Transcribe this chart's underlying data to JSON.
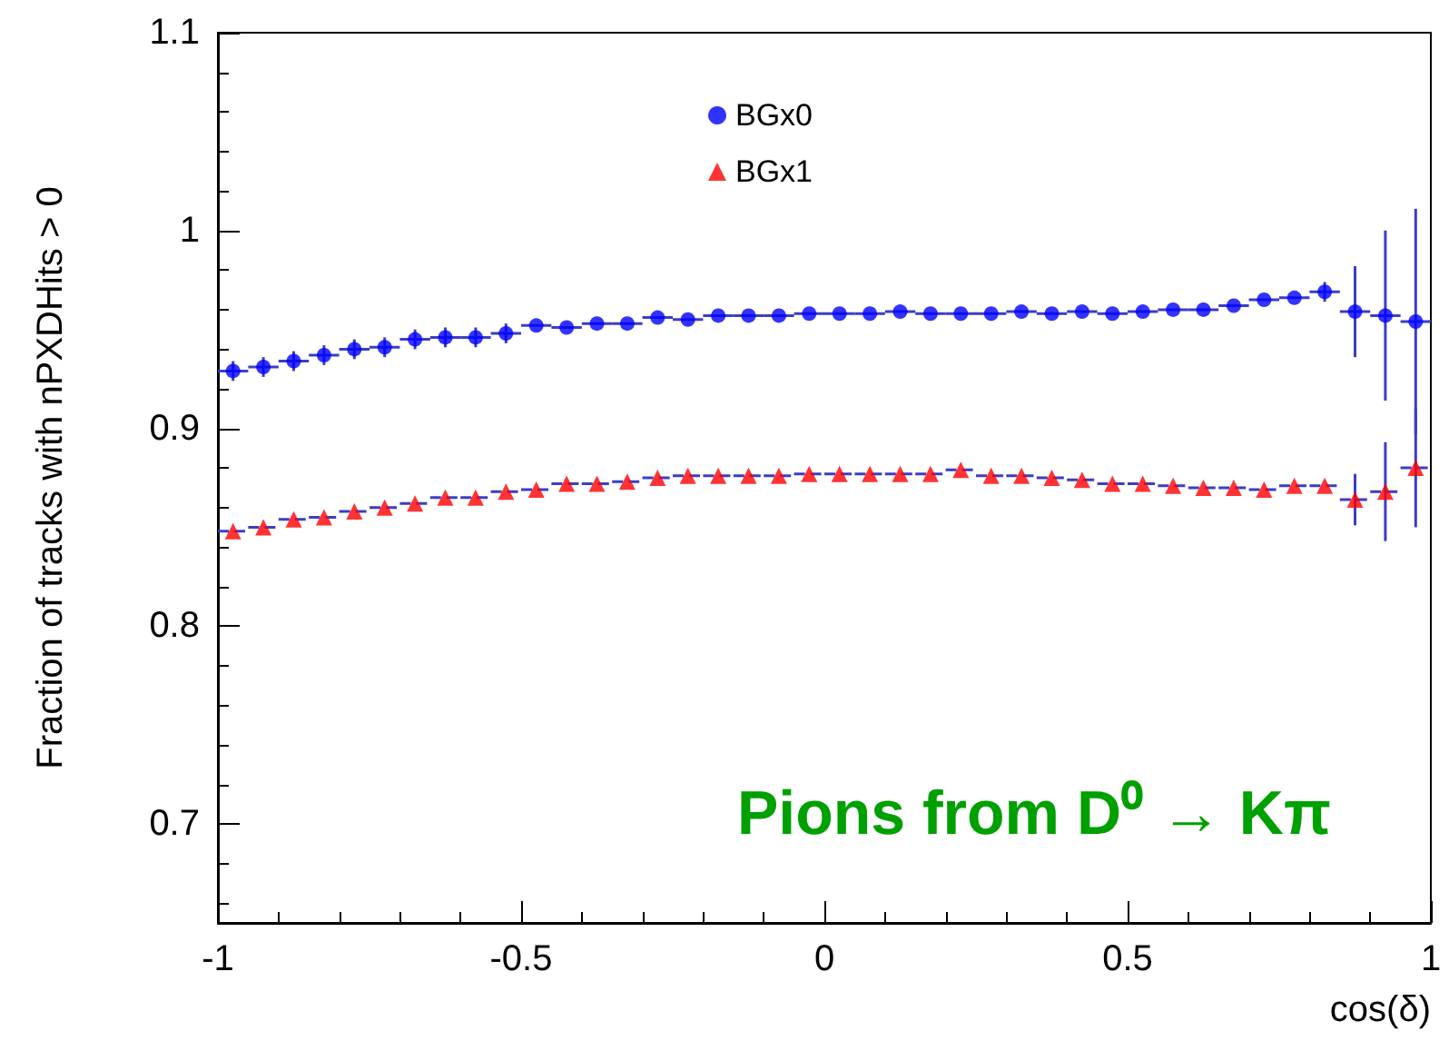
{
  "chart_data": {
    "type": "scatter",
    "xlabel": "cos(δ)",
    "ylabel": "Fraction of tracks with nPXDHits > 0",
    "annotations": [
      "Pions from D⁰ → Kπ"
    ],
    "x": [
      -0.975,
      -0.925,
      -0.875,
      -0.825,
      -0.775,
      -0.725,
      -0.675,
      -0.625,
      -0.575,
      -0.525,
      -0.475,
      -0.425,
      -0.375,
      -0.325,
      -0.275,
      -0.225,
      -0.175,
      -0.125,
      -0.075,
      -0.025,
      0.025,
      0.075,
      0.125,
      0.175,
      0.225,
      0.275,
      0.325,
      0.375,
      0.425,
      0.475,
      0.525,
      0.575,
      0.625,
      0.675,
      0.725,
      0.775,
      0.825,
      0.875,
      0.925,
      0.975
    ],
    "series": [
      {
        "name": "BGx0",
        "color": "#0000ff",
        "marker": "circle",
        "values": [
          0.929,
          0.931,
          0.934,
          0.937,
          0.94,
          0.941,
          0.945,
          0.946,
          0.946,
          0.948,
          0.952,
          0.951,
          0.953,
          0.953,
          0.956,
          0.955,
          0.957,
          0.957,
          0.957,
          0.958,
          0.958,
          0.958,
          0.959,
          0.958,
          0.958,
          0.958,
          0.959,
          0.958,
          0.959,
          0.958,
          0.959,
          0.96,
          0.96,
          0.962,
          0.965,
          0.966,
          0.969,
          0.959,
          0.957,
          0.954
        ],
        "errors": [
          0.005,
          0.005,
          0.005,
          0.005,
          0.005,
          0.005,
          0.005,
          0.005,
          0.005,
          0.005,
          null,
          null,
          null,
          null,
          null,
          null,
          null,
          null,
          null,
          null,
          null,
          null,
          null,
          null,
          null,
          null,
          null,
          null,
          null,
          null,
          null,
          null,
          null,
          null,
          null,
          null,
          0.005,
          0.023,
          0.043,
          0.057
        ],
        "xerrors": [
          0.025,
          0.025,
          0.025,
          0.025,
          0.025,
          0.025,
          0.025,
          0.025,
          0.025,
          0.025,
          0.025,
          0.025,
          0.025,
          0.025,
          0.025,
          0.025,
          0.025,
          0.025,
          0.025,
          0.025,
          0.025,
          0.025,
          0.025,
          0.025,
          0.025,
          0.025,
          0.025,
          0.025,
          0.025,
          0.025,
          0.025,
          0.025,
          0.025,
          0.025,
          0.025,
          0.025,
          0.025,
          0.025,
          0.025,
          0.025
        ]
      },
      {
        "name": "BGx1",
        "color": "#ff0000",
        "marker": "triangle",
        "line_style": "dashed",
        "values": [
          0.848,
          0.85,
          0.854,
          0.855,
          0.858,
          0.86,
          0.862,
          0.865,
          0.865,
          0.868,
          0.869,
          0.872,
          0.872,
          0.873,
          0.875,
          0.876,
          0.876,
          0.876,
          0.876,
          0.877,
          0.877,
          0.877,
          0.877,
          0.877,
          0.879,
          0.876,
          0.876,
          0.875,
          0.874,
          0.872,
          0.872,
          0.871,
          0.87,
          0.87,
          0.869,
          0.871,
          0.871,
          0.864,
          0.868,
          0.88
        ],
        "errors": [
          null,
          null,
          null,
          null,
          null,
          null,
          null,
          null,
          null,
          null,
          null,
          null,
          null,
          null,
          null,
          null,
          null,
          null,
          null,
          null,
          null,
          null,
          null,
          null,
          null,
          null,
          null,
          null,
          null,
          null,
          null,
          null,
          null,
          null,
          null,
          null,
          null,
          0.013,
          0.025,
          0.03
        ],
        "xerrors": [
          0.025,
          0.025,
          0.025,
          0.025,
          0.025,
          0.025,
          0.025,
          0.025,
          0.025,
          0.025,
          0.025,
          0.025,
          0.025,
          0.025,
          0.025,
          0.025,
          0.025,
          0.025,
          0.025,
          0.025,
          0.025,
          0.025,
          0.025,
          0.025,
          0.025,
          0.025,
          0.025,
          0.025,
          0.025,
          0.025,
          0.025,
          0.025,
          0.025,
          0.025,
          0.025,
          0.025,
          0.025,
          0.025,
          0.025,
          0.025
        ]
      }
    ],
    "xlim": [
      -1,
      1
    ],
    "xticks": [
      -1,
      -0.5,
      0,
      0.5,
      1
    ],
    "ylim": [
      0.65,
      1.1
    ],
    "yticks": [
      0.7,
      0.8,
      0.9,
      1,
      1.1
    ],
    "grid": false,
    "legend": "top"
  }
}
